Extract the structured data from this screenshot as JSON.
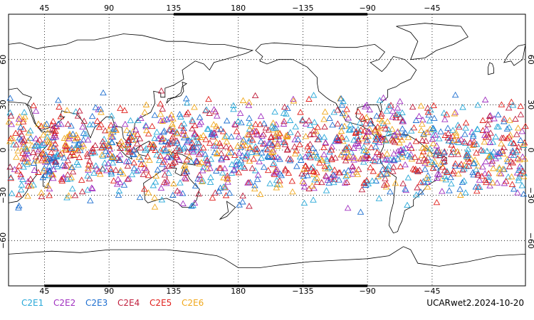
{
  "map": {
    "projection": "cylindrical-equidistant",
    "center_longitude": 180,
    "lon_range": [
      20,
      380
    ],
    "lat_range": [
      -90,
      90
    ],
    "grid": "dotted",
    "grid_color": "#000000",
    "coastline_color": "#000000",
    "top_lon_ticks": [
      "45",
      "90",
      "135",
      "180",
      "−135",
      "−90",
      "−45"
    ],
    "bottom_lon_ticks": [
      "45",
      "90",
      "135",
      "180",
      "−135",
      "−90",
      "−45"
    ],
    "lat_ticks": [
      "60",
      "30",
      "0",
      "−30",
      "−60"
    ]
  },
  "legend": [
    {
      "label": "C2E1",
      "color": "#29a8d8"
    },
    {
      "label": "C2E2",
      "color": "#a030c0"
    },
    {
      "label": "C2E3",
      "color": "#1e6fd0"
    },
    {
      "label": "C2E4",
      "color": "#c01f3d"
    },
    {
      "label": "C2E5",
      "color": "#e0201c"
    },
    {
      "label": "C2E6",
      "color": "#f0a81c"
    }
  ],
  "marker": "triangle",
  "observation_lat_band": [
    -45,
    45
  ],
  "caption": "UCARwet2.2024-10-20"
}
